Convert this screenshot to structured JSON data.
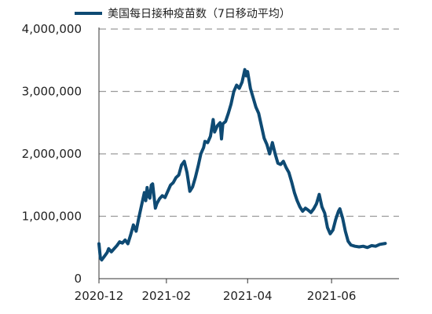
{
  "chart_data": {
    "type": "line",
    "title": "",
    "xlabel": "",
    "ylabel": "",
    "legend": {
      "placement": "top-left",
      "label": "美国每日接种疫苗数（7日移动平均）"
    },
    "ylim": [
      0,
      4000000
    ],
    "yticks": [
      0,
      1000000,
      2000000,
      3000000,
      4000000
    ],
    "ytick_labels": [
      "0",
      "1,000,000",
      "2,000,000",
      "3,000,000",
      "4,000,000"
    ],
    "xlim": [
      "2020-12-14",
      "2021-07-20"
    ],
    "xticks": [
      "2020-12-14",
      "2021-02-01",
      "2021-04-01",
      "2021-06-01"
    ],
    "xtick_labels": [
      "2020-12",
      "2021-02",
      "2021-04",
      "2021-06"
    ],
    "grid": {
      "horizontal": true,
      "style": "dashed"
    },
    "colors": {
      "line": "#0e4a73",
      "grid": "#9a9a9a",
      "axis": "#333333"
    },
    "series": [
      {
        "name": "美国每日接种疫苗数（7日移动平均）",
        "points": [
          [
            "2020-12-14",
            560000
          ],
          [
            "2020-12-15",
            330000
          ],
          [
            "2020-12-16",
            300000
          ],
          [
            "2020-12-18",
            360000
          ],
          [
            "2020-12-20",
            420000
          ],
          [
            "2020-12-21",
            480000
          ],
          [
            "2020-12-23",
            430000
          ],
          [
            "2020-12-25",
            480000
          ],
          [
            "2020-12-27",
            530000
          ],
          [
            "2020-12-29",
            590000
          ],
          [
            "2020-12-31",
            570000
          ],
          [
            "2021-01-02",
            620000
          ],
          [
            "2021-01-04",
            560000
          ],
          [
            "2021-01-06",
            700000
          ],
          [
            "2021-01-08",
            860000
          ],
          [
            "2021-01-10",
            760000
          ],
          [
            "2021-01-12",
            980000
          ],
          [
            "2021-01-14",
            1180000
          ],
          [
            "2021-01-16",
            1380000
          ],
          [
            "2021-01-17",
            1250000
          ],
          [
            "2021-01-18",
            1460000
          ],
          [
            "2021-01-19",
            1320000
          ],
          [
            "2021-01-20",
            1290000
          ],
          [
            "2021-01-21",
            1500000
          ],
          [
            "2021-01-22",
            1520000
          ],
          [
            "2021-01-24",
            1130000
          ],
          [
            "2021-01-25",
            1200000
          ],
          [
            "2021-01-27",
            1280000
          ],
          [
            "2021-01-29",
            1330000
          ],
          [
            "2021-01-31",
            1300000
          ],
          [
            "2021-02-02",
            1400000
          ],
          [
            "2021-02-04",
            1500000
          ],
          [
            "2021-02-06",
            1540000
          ],
          [
            "2021-02-08",
            1620000
          ],
          [
            "2021-02-10",
            1660000
          ],
          [
            "2021-02-12",
            1820000
          ],
          [
            "2021-02-14",
            1880000
          ],
          [
            "2021-02-16",
            1700000
          ],
          [
            "2021-02-18",
            1400000
          ],
          [
            "2021-02-20",
            1470000
          ],
          [
            "2021-02-22",
            1620000
          ],
          [
            "2021-02-24",
            1800000
          ],
          [
            "2021-02-26",
            2000000
          ],
          [
            "2021-02-28",
            2100000
          ],
          [
            "2021-03-01",
            2200000
          ],
          [
            "2021-03-03",
            2180000
          ],
          [
            "2021-03-05",
            2280000
          ],
          [
            "2021-03-07",
            2550000
          ],
          [
            "2021-03-08",
            2350000
          ],
          [
            "2021-03-10",
            2450000
          ],
          [
            "2021-03-12",
            2500000
          ],
          [
            "2021-03-13",
            2240000
          ],
          [
            "2021-03-14",
            2480000
          ],
          [
            "2021-03-16",
            2520000
          ],
          [
            "2021-03-18",
            2650000
          ],
          [
            "2021-03-20",
            2800000
          ],
          [
            "2021-03-22",
            3000000
          ],
          [
            "2021-03-24",
            3100000
          ],
          [
            "2021-03-26",
            3050000
          ],
          [
            "2021-03-28",
            3150000
          ],
          [
            "2021-03-30",
            3350000
          ],
          [
            "2021-03-31",
            3250000
          ],
          [
            "2021-04-01",
            3320000
          ],
          [
            "2021-04-03",
            3050000
          ],
          [
            "2021-04-05",
            2900000
          ],
          [
            "2021-04-07",
            2750000
          ],
          [
            "2021-04-09",
            2650000
          ],
          [
            "2021-04-11",
            2450000
          ],
          [
            "2021-04-13",
            2250000
          ],
          [
            "2021-04-15",
            2150000
          ],
          [
            "2021-04-17",
            2000000
          ],
          [
            "2021-04-19",
            2180000
          ],
          [
            "2021-04-21",
            2000000
          ],
          [
            "2021-04-23",
            1850000
          ],
          [
            "2021-04-25",
            1830000
          ],
          [
            "2021-04-27",
            1880000
          ],
          [
            "2021-04-29",
            1780000
          ],
          [
            "2021-05-01",
            1700000
          ],
          [
            "2021-05-03",
            1550000
          ],
          [
            "2021-05-05",
            1380000
          ],
          [
            "2021-05-07",
            1250000
          ],
          [
            "2021-05-09",
            1150000
          ],
          [
            "2021-05-11",
            1080000
          ],
          [
            "2021-05-13",
            1130000
          ],
          [
            "2021-05-15",
            1100000
          ],
          [
            "2021-05-17",
            1060000
          ],
          [
            "2021-05-19",
            1120000
          ],
          [
            "2021-05-21",
            1200000
          ],
          [
            "2021-05-23",
            1350000
          ],
          [
            "2021-05-25",
            1150000
          ],
          [
            "2021-05-27",
            1050000
          ],
          [
            "2021-05-29",
            820000
          ],
          [
            "2021-05-31",
            720000
          ],
          [
            "2021-06-02",
            780000
          ],
          [
            "2021-06-04",
            950000
          ],
          [
            "2021-06-06",
            1080000
          ],
          [
            "2021-06-07",
            1120000
          ],
          [
            "2021-06-09",
            970000
          ],
          [
            "2021-06-11",
            760000
          ],
          [
            "2021-06-13",
            600000
          ],
          [
            "2021-06-15",
            540000
          ],
          [
            "2021-06-18",
            520000
          ],
          [
            "2021-06-21",
            510000
          ],
          [
            "2021-06-24",
            520000
          ],
          [
            "2021-06-27",
            500000
          ],
          [
            "2021-06-30",
            530000
          ],
          [
            "2021-07-03",
            520000
          ],
          [
            "2021-07-06",
            550000
          ],
          [
            "2021-07-10",
            565000
          ]
        ]
      }
    ]
  }
}
